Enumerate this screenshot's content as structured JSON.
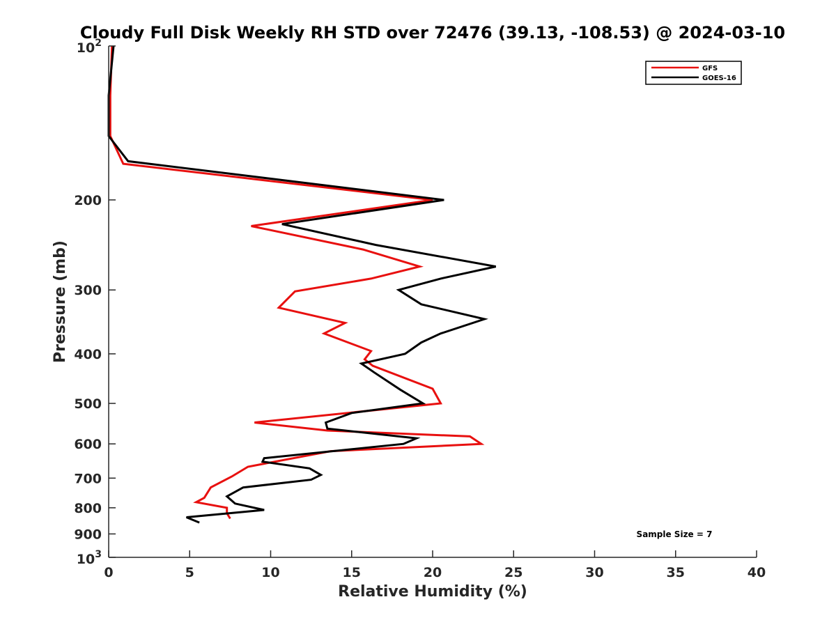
{
  "chart_data": {
    "type": "line",
    "title": "Cloudy Full Disk Weekly RH STD over 72476 (39.13, -108.53) @ 2024-03-10",
    "xlabel": "Relative Humidity (%)",
    "ylabel": "Pressure (mb)",
    "xlim": [
      0,
      40
    ],
    "ylim": [
      100,
      1000
    ],
    "y_scale": "log",
    "y_reversed": true,
    "grid": false,
    "legend_position": "top-right",
    "x_ticks": [
      "0",
      "5",
      "10",
      "15",
      "20",
      "25",
      "30",
      "35",
      "40"
    ],
    "y_ticks": [
      {
        "value": 200,
        "label": "200"
      },
      {
        "value": 300,
        "label": "300"
      },
      {
        "value": 400,
        "label": "400"
      },
      {
        "value": 500,
        "label": "500"
      },
      {
        "value": 600,
        "label": "600"
      },
      {
        "value": 700,
        "label": "700"
      },
      {
        "value": 800,
        "label": "800"
      },
      {
        "value": 900,
        "label": "900"
      }
    ],
    "y_ticks_pow": [
      {
        "value": 100,
        "base": "10",
        "exp": "2"
      },
      {
        "value": 1000,
        "base": "10",
        "exp": "3"
      }
    ],
    "series": [
      {
        "name": "GFS",
        "color": "#e8100f",
        "points": [
          [
            0.2,
            100
          ],
          [
            0.1,
            125
          ],
          [
            0.1,
            150
          ],
          [
            0.9,
            170
          ],
          [
            20.0,
            200
          ],
          [
            8.8,
            225
          ],
          [
            15.7,
            250
          ],
          [
            19.2,
            270
          ],
          [
            16.2,
            285
          ],
          [
            11.5,
            302
          ],
          [
            10.5,
            325
          ],
          [
            14.6,
            348
          ],
          [
            13.3,
            365
          ],
          [
            16.2,
            395
          ],
          [
            15.8,
            410
          ],
          [
            16.3,
            422
          ],
          [
            20.0,
            468
          ],
          [
            20.5,
            500
          ],
          [
            9.0,
            545
          ],
          [
            13.5,
            565
          ],
          [
            22.3,
            580
          ],
          [
            23.0,
            600
          ],
          [
            13.7,
            620
          ],
          [
            8.6,
            665
          ],
          [
            7.6,
            695
          ],
          [
            6.3,
            730
          ],
          [
            5.9,
            765
          ],
          [
            5.4,
            780
          ],
          [
            7.3,
            800
          ],
          [
            7.3,
            820
          ],
          [
            7.5,
            840
          ]
        ]
      },
      {
        "name": "GOES-16",
        "color": "#000000",
        "points": [
          [
            0.3,
            100
          ],
          [
            0.0,
            125
          ],
          [
            0.0,
            150
          ],
          [
            1.2,
            168
          ],
          [
            20.7,
            200
          ],
          [
            10.7,
            223
          ],
          [
            16.5,
            245
          ],
          [
            23.9,
            270
          ],
          [
            20.5,
            285
          ],
          [
            17.9,
            300
          ],
          [
            19.3,
            320
          ],
          [
            23.2,
            342
          ],
          [
            20.5,
            365
          ],
          [
            19.3,
            380
          ],
          [
            18.3,
            400
          ],
          [
            15.6,
            418
          ],
          [
            16.4,
            435
          ],
          [
            18.0,
            470
          ],
          [
            19.4,
            500
          ],
          [
            15.0,
            522
          ],
          [
            13.4,
            545
          ],
          [
            13.5,
            560
          ],
          [
            19.0,
            585
          ],
          [
            18.2,
            600
          ],
          [
            9.6,
            640
          ],
          [
            9.5,
            650
          ],
          [
            12.4,
            670
          ],
          [
            13.1,
            690
          ],
          [
            12.5,
            705
          ],
          [
            8.3,
            730
          ],
          [
            7.3,
            760
          ],
          [
            7.8,
            785
          ],
          [
            9.6,
            808
          ],
          [
            4.8,
            835
          ],
          [
            5.6,
            855
          ]
        ]
      }
    ],
    "annotation": "Sample Size = 7"
  }
}
